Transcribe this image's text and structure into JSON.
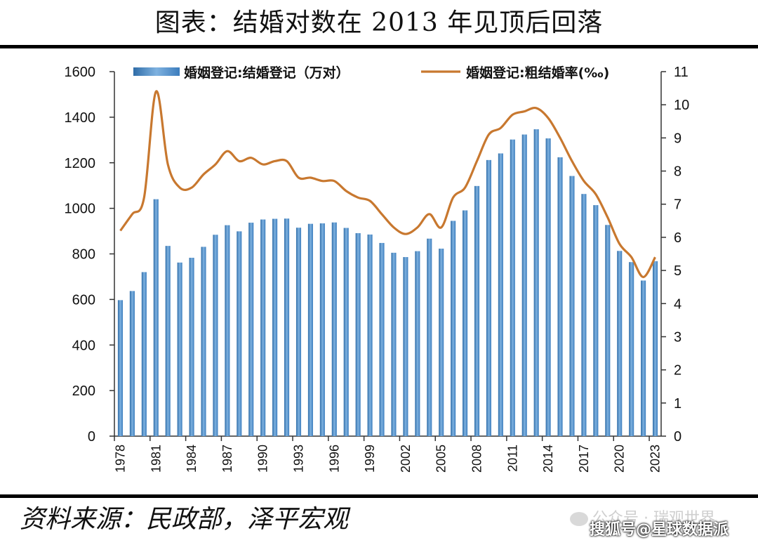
{
  "header": {
    "title": "图表：结婚对数在 2013 年见顶后回落"
  },
  "footer": {
    "source": "资料来源：民政部，泽平宏观"
  },
  "watermarks": {
    "wechat": "公众号 · 瑞观世界",
    "sohu": "搜狐号@星球数据派"
  },
  "colors": {
    "bar": "#5b9bd5",
    "bar_dark": "#2f6da8",
    "line": "#c8782f",
    "axis": "#333333"
  },
  "chart_data": {
    "type": "bar",
    "title": "",
    "legend_position": "top",
    "x": [
      1978,
      1979,
      1980,
      1981,
      1982,
      1983,
      1984,
      1985,
      1986,
      1987,
      1988,
      1989,
      1990,
      1991,
      1992,
      1993,
      1994,
      1995,
      1996,
      1997,
      1998,
      1999,
      2000,
      2001,
      2002,
      2003,
      2004,
      2005,
      2006,
      2007,
      2008,
      2009,
      2010,
      2011,
      2012,
      2013,
      2014,
      2015,
      2016,
      2017,
      2018,
      2019,
      2020,
      2021,
      2022,
      2023
    ],
    "x_tick_labels": [
      "1978",
      "1981",
      "1984",
      "1987",
      "1990",
      "1993",
      "1996",
      "1999",
      "2002",
      "2005",
      "2008",
      "2011",
      "2014",
      "2017",
      "2020",
      "2023"
    ],
    "y_left": {
      "lim": [
        0,
        1600
      ],
      "ticks": [
        "0",
        "200",
        "400",
        "600",
        "800",
        "1000",
        "1200",
        "1400",
        "1600"
      ]
    },
    "y_right": {
      "lim": [
        0,
        11
      ],
      "ticks": [
        "0",
        "1",
        "2",
        "3",
        "4",
        "5",
        "6",
        "7",
        "8",
        "9",
        "10",
        "11"
      ]
    },
    "series": [
      {
        "name": "婚姻登记:结婚登记（万对）",
        "type": "bar",
        "axis": "left",
        "values": [
          597,
          637,
          720,
          1040,
          835,
          762,
          783,
          831,
          884,
          926,
          899,
          937,
          951,
          954,
          955,
          915,
          932,
          934,
          938,
          914,
          891,
          885,
          848,
          805,
          786,
          812,
          867,
          823,
          945,
          991,
          1098,
          1212,
          1241,
          1302,
          1324,
          1347,
          1307,
          1224,
          1142,
          1063,
          1014,
          927,
          813,
          764,
          683,
          768
        ]
      },
      {
        "name": "婚姻登记:粗结婚率(‰)",
        "type": "line",
        "axis": "right",
        "values": [
          6.2,
          6.7,
          7.2,
          10.4,
          8.2,
          7.5,
          7.5,
          7.9,
          8.2,
          8.6,
          8.3,
          8.4,
          8.2,
          8.3,
          8.3,
          7.8,
          7.8,
          7.7,
          7.7,
          7.4,
          7.2,
          7.1,
          6.7,
          6.3,
          6.1,
          6.3,
          6.7,
          6.3,
          7.2,
          7.5,
          8.3,
          9.1,
          9.3,
          9.7,
          9.8,
          9.9,
          9.6,
          9.0,
          8.3,
          7.7,
          7.3,
          6.6,
          5.8,
          5.4,
          4.8,
          5.4
        ]
      }
    ]
  }
}
